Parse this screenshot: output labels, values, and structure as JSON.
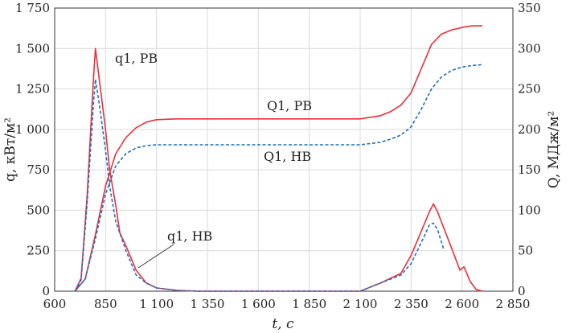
{
  "chart_data": {
    "type": "line",
    "xlabel": "t, с",
    "ylabel_left": "q, кВт/м²",
    "ylabel_right": "Q, МДж/м²",
    "xlim": [
      600,
      2850
    ],
    "ylim_left": [
      0,
      1750
    ],
    "ylim_right": [
      0,
      350
    ],
    "x_ticks": [
      600,
      850,
      1100,
      1350,
      1600,
      1850,
      2100,
      2350,
      2600,
      2850
    ],
    "x_tick_labels": [
      "600",
      "850",
      "1 100",
      "1 350",
      "1 600",
      "1 850",
      "2 100",
      "2 350",
      "2 600",
      "2 850"
    ],
    "y_left_ticks": [
      0,
      250,
      500,
      750,
      1000,
      1250,
      1500,
      1750
    ],
    "y_left_tick_labels": [
      "0",
      "250",
      "500",
      "750",
      "1 000",
      "1 250",
      "1 500",
      "1 750"
    ],
    "y_right_ticks": [
      0,
      50,
      100,
      150,
      200,
      250,
      300,
      350
    ],
    "y_right_tick_labels": [
      "0",
      "50",
      "100",
      "150",
      "200",
      "250",
      "300",
      "350"
    ],
    "grid": true,
    "series": [
      {
        "name": "q1, РВ",
        "axis": "left",
        "color": "#e8303a",
        "style": "solid",
        "x": [
          700,
          730,
          760,
          790,
          800,
          820,
          850,
          870,
          900,
          920,
          950,
          1000,
          1050,
          1100,
          1200,
          1300,
          1400,
          2100,
          2200,
          2300,
          2350,
          2400,
          2440,
          2460,
          2480,
          2520,
          2560,
          2590,
          2610,
          2640,
          2670,
          2700
        ],
        "y": [
          0,
          80,
          600,
          1300,
          1500,
          1300,
          1000,
          750,
          530,
          360,
          280,
          130,
          50,
          20,
          5,
          0,
          0,
          0,
          50,
          110,
          220,
          370,
          490,
          540,
          490,
          360,
          230,
          130,
          150,
          60,
          10,
          0
        ]
      },
      {
        "name": "q1, НВ",
        "axis": "left",
        "color": "#1f6fc0",
        "style": "dashed",
        "x": [
          700,
          730,
          760,
          790,
          800,
          820,
          850,
          870,
          900,
          950,
          1000,
          1050,
          1100,
          1200,
          1300,
          1400,
          2100,
          2200,
          2300,
          2350,
          2400,
          2440,
          2460,
          2480,
          2510
        ],
        "y": [
          0,
          70,
          550,
          1150,
          1310,
          1150,
          870,
          650,
          430,
          250,
          100,
          50,
          20,
          5,
          0,
          0,
          0,
          50,
          100,
          170,
          300,
          410,
          420,
          380,
          260
        ]
      },
      {
        "name": "Q1, РВ",
        "axis": "right",
        "color": "#e8303a",
        "style": "solid",
        "x": [
          700,
          750,
          800,
          850,
          900,
          950,
          1000,
          1050,
          1100,
          1200,
          1300,
          1500,
          1700,
          1900,
          2100,
          2200,
          2250,
          2300,
          2350,
          2400,
          2450,
          2500,
          2550,
          2600,
          2650,
          2700
        ],
        "y": [
          0,
          15,
          70,
          130,
          170,
          190,
          202,
          209,
          212,
          213,
          213,
          213,
          213,
          213,
          213,
          217,
          222,
          230,
          245,
          275,
          305,
          318,
          323,
          326,
          328,
          328
        ]
      },
      {
        "name": "Q1, НВ",
        "axis": "right",
        "color": "#1f6fc0",
        "style": "dashed",
        "x": [
          700,
          750,
          800,
          850,
          900,
          950,
          1000,
          1050,
          1100,
          1200,
          1300,
          1500,
          1700,
          1900,
          2100,
          2200,
          2250,
          2300,
          2350,
          2400,
          2450,
          2500,
          2550,
          2600,
          2650,
          2700
        ],
        "y": [
          0,
          15,
          65,
          120,
          155,
          170,
          177,
          180,
          181,
          181,
          181,
          181,
          181,
          181,
          181,
          184,
          188,
          193,
          203,
          225,
          250,
          265,
          273,
          277,
          279,
          280
        ]
      }
    ],
    "annotations": {
      "q1_rv": "q1, РВ",
      "q1_nv": "q1, НВ",
      "Q1_rv": "Q1, РВ",
      "Q1_nv": "Q1, НВ"
    }
  }
}
